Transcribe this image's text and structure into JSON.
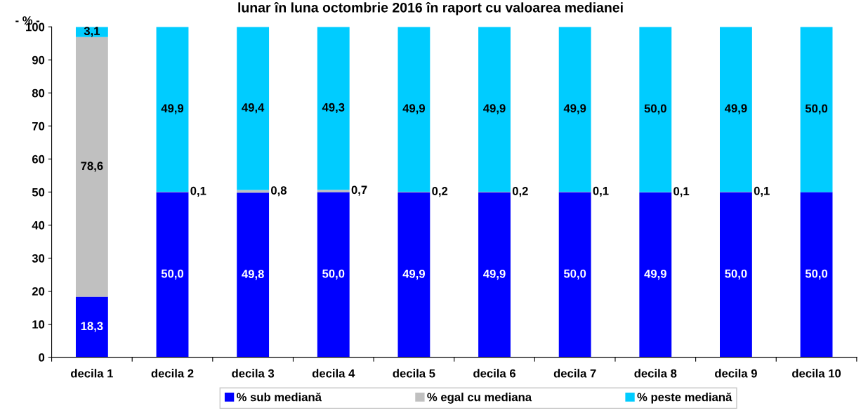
{
  "chart_data": {
    "type": "bar",
    "stacked": true,
    "title": "lunar în luna octombrie 2016 în raport cu valoarea medianei",
    "ylabel": "- % -",
    "categories": [
      "decila 1",
      "decila 2",
      "decila 3",
      "decila 4",
      "decila 5",
      "decila 6",
      "decila 7",
      "decila 8",
      "decila 9",
      "decila 10"
    ],
    "series": [
      {
        "name": "% sub mediană",
        "color": "#0000ff",
        "values": [
          18.3,
          50.0,
          49.8,
          50.0,
          49.9,
          49.9,
          50.0,
          49.9,
          50.0,
          50.0
        ],
        "value_labels": [
          "18,3",
          "50,0",
          "49,8",
          "50,0",
          "49,9",
          "49,9",
          "50,0",
          "49,9",
          "50,0",
          "50,0"
        ]
      },
      {
        "name": "% egal cu mediana",
        "color": "#c0c0c0",
        "values": [
          78.6,
          0.1,
          0.8,
          0.7,
          0.2,
          0.2,
          0.1,
          0.1,
          0.1,
          0.0
        ],
        "value_labels": [
          "78,6",
          "0,1",
          "0,8",
          "0,7",
          "0,2",
          "0,2",
          "0,1",
          "0,1",
          "0,1",
          null
        ]
      },
      {
        "name": "% peste mediană",
        "color": "#00ccff",
        "values": [
          3.1,
          49.9,
          49.4,
          49.3,
          49.9,
          49.9,
          49.9,
          50.0,
          49.9,
          50.0
        ],
        "value_labels": [
          "3,1",
          "49,9",
          "49,4",
          "49,3",
          "49,9",
          "49,9",
          "49,9",
          "50,0",
          "49,9",
          "50,0"
        ]
      }
    ],
    "ylim": [
      0,
      100
    ],
    "yticks": [
      0,
      10,
      20,
      30,
      40,
      50,
      60,
      70,
      80,
      90,
      100
    ],
    "grid": false,
    "legend": "bottom"
  }
}
